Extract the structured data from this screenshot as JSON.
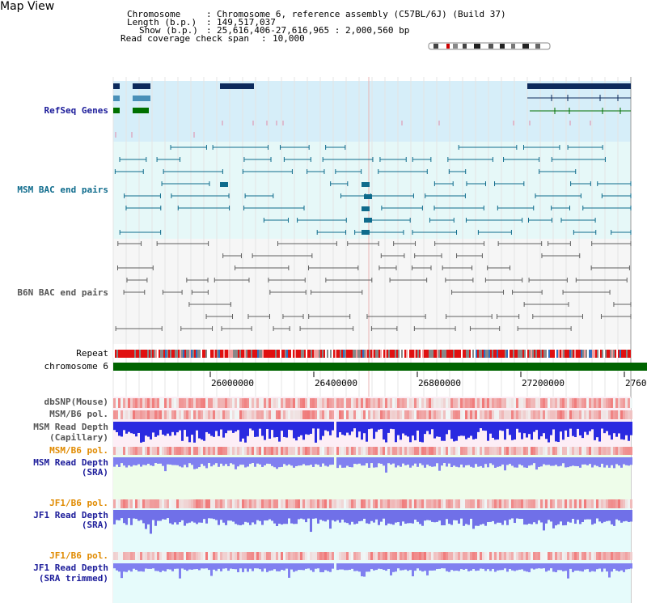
{
  "title": "Map View",
  "header": {
    "chromosome_label": "Chromosome",
    "chromosome_value": "Chromosome 6, reference assembly (C57BL/6J) (Build 37)",
    "length_label": "Length (b.p.)",
    "length_value": "149,517,037",
    "show_label": "Show (b.p.)",
    "show_value": "25,616,406-27,616,965 : 2,000,560 bp",
    "coverage_label": "Read coverage check span",
    "coverage_value": "10,000"
  },
  "tracks": {
    "refseq": "RefSeq Genes",
    "msm_bac": "MSM BAC end pairs",
    "b6n_bac": "B6N BAC end pairs",
    "repeat": "Repeat",
    "chromosome": "chromosome 6",
    "dbsnp": "dbSNP(Mouse)",
    "msm_b6_pol_1": "MSM/B6 pol.",
    "msm_depth_cap_1": "MSM Read Depth",
    "msm_depth_cap_2": "(Capillary)",
    "msm_b6_pol_2": "MSM/B6 pol.",
    "msm_depth_sra_1": "MSM Read Depth",
    "msm_depth_sra_2": "(SRA)",
    "jf1_b6_pol_1": "JF1/B6 pol.",
    "jf1_depth_1": "JF1 Read Depth",
    "jf1_depth_2": "(SRA)",
    "jf1_b6_pol_2": "JF1/B6 pol.",
    "jf1_trim_1": "JF1 Read Depth",
    "jf1_trim_2": "(SRA trimmed)"
  },
  "axis": {
    "ticks": [
      "26000000",
      "26400000",
      "26800000",
      "27200000",
      "2760"
    ]
  },
  "colors": {
    "refseq_bg": "#d6eef9",
    "msm_bg": "#e6f8f8",
    "b6n_bg": "#f6f6f6",
    "navy": "#0d2a5c",
    "teal": "#0e6b8c",
    "green": "#007000",
    "gray": "#606060",
    "chromosome": "#006400"
  }
}
